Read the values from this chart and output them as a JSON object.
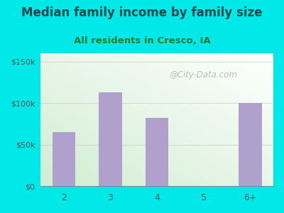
{
  "title": "Median family income by family size",
  "subtitle": "All residents in Cresco, IA",
  "categories": [
    "2",
    "3",
    "4",
    "5",
    "6+"
  ],
  "values": [
    65000,
    113000,
    82000,
    0,
    100000
  ],
  "bar_color": "#b0a0cc",
  "background_color": "#00e8e8",
  "title_color": "#1a4a4a",
  "subtitle_color": "#2a7a2a",
  "yticks": [
    0,
    50000,
    100000,
    150000
  ],
  "ytick_labels": [
    "$0",
    "$50k",
    "$100k",
    "$150k"
  ],
  "ylim": [
    0,
    160000
  ],
  "title_fontsize": 12,
  "subtitle_fontsize": 9.5,
  "watermark": "@City-Data.com",
  "tick_color": "#555555",
  "grid_color": "#cccccc"
}
